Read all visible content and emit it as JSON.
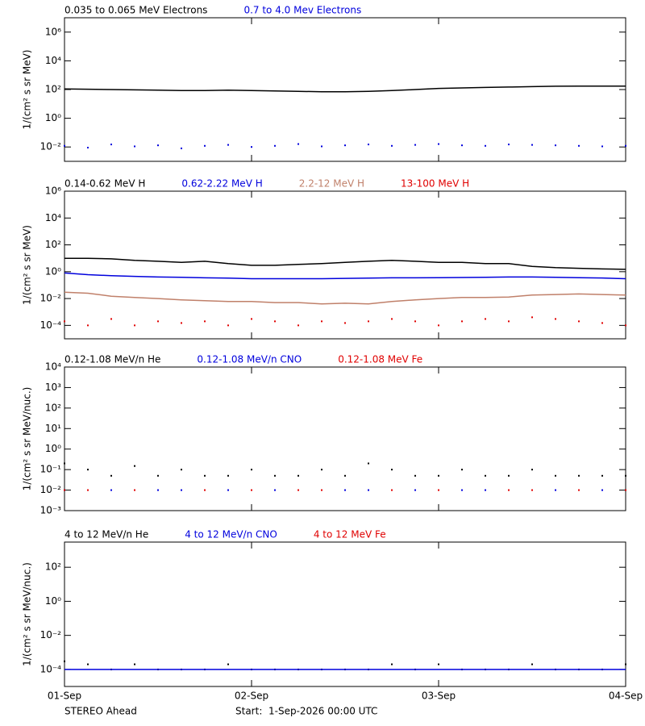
{
  "chart_data": [
    {
      "type": "line",
      "log_y": true,
      "ylabel": "1/(cm² s sr MeV)",
      "legend": "above-left",
      "xlim": [
        0,
        3
      ],
      "xticks": [
        {
          "value": 0,
          "label": "01-Sep"
        },
        {
          "value": 1,
          "label": "02-Sep"
        },
        {
          "value": 2,
          "label": "03-Sep"
        },
        {
          "value": 3,
          "label": "04-Sep"
        }
      ],
      "ylim": [
        0.001,
        10000000
      ],
      "yticks": [
        {
          "value": 0.01,
          "label": "10⁻²"
        },
        {
          "value": 1,
          "label": "10⁰"
        },
        {
          "value": 100,
          "label": "10²"
        },
        {
          "value": 10000,
          "label": "10⁴"
        },
        {
          "value": 1000000,
          "label": "10⁶"
        }
      ],
      "x": [
        0,
        0.125,
        0.25,
        0.375,
        0.5,
        0.625,
        0.75,
        0.875,
        1,
        1.125,
        1.25,
        1.375,
        1.5,
        1.625,
        1.75,
        1.875,
        2,
        2.125,
        2.25,
        2.375,
        2.5,
        2.625,
        2.75,
        2.875,
        3
      ],
      "series": [
        {
          "name": "0.035 to 0.065 MeV Electrons",
          "color": "#000000",
          "style": "line",
          "values": [
            110,
            105,
            100,
            95,
            90,
            85,
            85,
            90,
            85,
            80,
            75,
            70,
            70,
            75,
            85,
            100,
            120,
            130,
            140,
            150,
            160,
            170,
            175,
            175,
            175
          ]
        },
        {
          "name": "0.7 to 4.0 Mev Electrons",
          "color": "#0000dd",
          "style": "points",
          "values": [
            0.012,
            0.009,
            0.015,
            0.011,
            0.013,
            0.008,
            0.012,
            0.014,
            0.01,
            0.012,
            0.016,
            0.011,
            0.013,
            0.015,
            0.012,
            0.014,
            0.016,
            0.013,
            0.012,
            0.015,
            0.014,
            0.013,
            0.012,
            0.011,
            0.012
          ]
        }
      ]
    },
    {
      "type": "line",
      "log_y": true,
      "ylabel": "1/(cm² s sr MeV)",
      "legend": "above-left",
      "xlim": [
        0,
        3
      ],
      "xticks": [
        {
          "value": 0,
          "label": "01-Sep"
        },
        {
          "value": 1,
          "label": "02-Sep"
        },
        {
          "value": 2,
          "label": "03-Sep"
        },
        {
          "value": 3,
          "label": "04-Sep"
        }
      ],
      "ylim": [
        1e-05,
        1000000
      ],
      "yticks": [
        {
          "value": 0.0001,
          "label": "10⁻⁴"
        },
        {
          "value": 0.01,
          "label": "10⁻²"
        },
        {
          "value": 1,
          "label": "10⁰"
        },
        {
          "value": 100,
          "label": "10²"
        },
        {
          "value": 10000,
          "label": "10⁴"
        },
        {
          "value": 1000000,
          "label": "10⁶"
        }
      ],
      "x": [
        0,
        0.125,
        0.25,
        0.375,
        0.5,
        0.625,
        0.75,
        0.875,
        1,
        1.125,
        1.25,
        1.375,
        1.5,
        1.625,
        1.75,
        1.875,
        2,
        2.125,
        2.25,
        2.375,
        2.5,
        2.625,
        2.75,
        2.875,
        3
      ],
      "series": [
        {
          "name": "0.14-0.62 MeV H",
          "color": "#000000",
          "style": "line",
          "values": [
            10,
            10,
            9,
            7,
            6,
            5,
            6,
            4,
            3,
            3,
            3.5,
            4,
            5,
            6,
            7,
            6,
            5,
            5,
            4,
            4,
            2.5,
            2,
            1.8,
            1.6,
            1.5
          ]
        },
        {
          "name": "0.62-2.22 MeV H",
          "color": "#0000dd",
          "style": "line",
          "values": [
            0.8,
            0.6,
            0.5,
            0.45,
            0.4,
            0.38,
            0.35,
            0.33,
            0.3,
            0.3,
            0.3,
            0.3,
            0.32,
            0.33,
            0.35,
            0.35,
            0.36,
            0.37,
            0.38,
            0.4,
            0.4,
            0.38,
            0.36,
            0.34,
            0.3
          ]
        },
        {
          "name": "2.2-12 MeV H",
          "color": "#c0806a",
          "style": "line",
          "values": [
            0.03,
            0.025,
            0.015,
            0.012,
            0.01,
            0.008,
            0.007,
            0.006,
            0.006,
            0.005,
            0.005,
            0.004,
            0.0045,
            0.004,
            0.006,
            0.008,
            0.01,
            0.012,
            0.012,
            0.013,
            0.018,
            0.02,
            0.022,
            0.02,
            0.018
          ]
        },
        {
          "name": "13-100 MeV H",
          "color": "#e00000",
          "style": "points",
          "values": [
            0.0002,
            0.0001,
            0.0003,
            0.0001,
            0.0002,
            0.00015,
            0.0002,
            0.0001,
            0.0003,
            0.0002,
            0.0001,
            0.0002,
            0.00015,
            0.0002,
            0.0003,
            0.0002,
            0.0001,
            0.0002,
            0.0003,
            0.0002,
            0.0004,
            0.0003,
            0.0002,
            0.00015,
            0.0001
          ]
        }
      ]
    },
    {
      "type": "line",
      "log_y": true,
      "ylabel": "1/(cm² s sr MeV/nuc.)",
      "legend": "above-left",
      "xlim": [
        0,
        3
      ],
      "xticks": [
        {
          "value": 0,
          "label": "01-Sep"
        },
        {
          "value": 1,
          "label": "02-Sep"
        },
        {
          "value": 2,
          "label": "03-Sep"
        },
        {
          "value": 3,
          "label": "04-Sep"
        }
      ],
      "ylim": [
        0.001,
        10000
      ],
      "yticks": [
        {
          "value": 0.001,
          "label": "10⁻³"
        },
        {
          "value": 0.01,
          "label": "10⁻²"
        },
        {
          "value": 0.1,
          "label": "10⁻¹"
        },
        {
          "value": 1,
          "label": "10⁰"
        },
        {
          "value": 10,
          "label": "10¹"
        },
        {
          "value": 100,
          "label": "10²"
        },
        {
          "value": 1000,
          "label": "10³"
        },
        {
          "value": 10000,
          "label": "10⁴"
        }
      ],
      "x": [
        0,
        0.125,
        0.25,
        0.375,
        0.5,
        0.625,
        0.75,
        0.875,
        1,
        1.125,
        1.25,
        1.375,
        1.5,
        1.625,
        1.75,
        1.875,
        2,
        2.125,
        2.25,
        2.375,
        2.5,
        2.625,
        2.75,
        2.875,
        3
      ],
      "series": [
        {
          "name": "0.12-1.08 MeV/n He",
          "color": "#000000",
          "style": "points",
          "values": [
            0.2,
            0.1,
            0.05,
            0.15,
            0.05,
            0.1,
            0.05,
            0.05,
            0.1,
            0.05,
            0.05,
            0.1,
            0.05,
            0.2,
            0.1,
            0.05,
            0.05,
            0.1,
            0.05,
            0.05,
            0.1,
            0.05,
            0.05,
            0.05,
            0.05
          ]
        },
        {
          "name": "0.12-1.08 MeV/n CNO",
          "color": "#0000dd",
          "style": "points",
          "values": [
            0.01,
            null,
            0.01,
            null,
            0.01,
            0.01,
            null,
            0.01,
            null,
            0.01,
            null,
            null,
            0.01,
            0.01,
            null,
            0.01,
            null,
            0.01,
            0.01,
            null,
            null,
            0.01,
            null,
            0.01,
            null
          ]
        },
        {
          "name": "0.12-1.08 MeV Fe",
          "color": "#e00000",
          "style": "points",
          "values": [
            0.01,
            0.01,
            null,
            0.01,
            null,
            null,
            0.01,
            null,
            0.01,
            null,
            0.01,
            0.01,
            null,
            null,
            0.01,
            null,
            0.01,
            null,
            null,
            0.01,
            0.01,
            null,
            0.01,
            null,
            0.01
          ]
        }
      ]
    },
    {
      "type": "line",
      "log_y": true,
      "ylabel": "1/(cm² s sr MeV/nuc.)",
      "legend": "above-left",
      "xlim": [
        0,
        3
      ],
      "xticks": [
        {
          "value": 0,
          "label": "01-Sep"
        },
        {
          "value": 1,
          "label": "02-Sep"
        },
        {
          "value": 2,
          "label": "03-Sep"
        },
        {
          "value": 3,
          "label": "04-Sep"
        }
      ],
      "ylim": [
        1e-05,
        3000
      ],
      "yticks": [
        {
          "value": 0.0001,
          "label": "10⁻⁴"
        },
        {
          "value": 0.01,
          "label": "10⁻²"
        },
        {
          "value": 1,
          "label": "10⁰"
        },
        {
          "value": 100,
          "label": "10²"
        }
      ],
      "x": [
        0,
        0.125,
        0.25,
        0.375,
        0.5,
        0.625,
        0.75,
        0.875,
        1,
        1.125,
        1.25,
        1.375,
        1.5,
        1.625,
        1.75,
        1.875,
        2,
        2.125,
        2.25,
        2.375,
        2.5,
        2.625,
        2.75,
        2.875,
        3
      ],
      "series": [
        {
          "name": "4 to 12 MeV/n He",
          "color": "#000000",
          "style": "points",
          "values": [
            0.0003,
            0.0002,
            0.0001,
            0.0002,
            0.0001,
            0.0001,
            0.0001,
            0.0002,
            0.0001,
            0.0001,
            0.0001,
            0.0001,
            0.0001,
            0.0001,
            0.0002,
            0.0001,
            0.0002,
            0.0001,
            0.0001,
            0.0001,
            0.0002,
            0.0001,
            0.0001,
            0.0001,
            0.0002
          ]
        },
        {
          "name": "4 to 12 MeV/n CNO",
          "color": "#0000dd",
          "style": "line",
          "values": [
            0.0001,
            0.0001,
            0.0001,
            0.0001,
            0.0001,
            0.0001,
            0.0001,
            0.0001,
            0.0001,
            0.0001,
            0.0001,
            0.0001,
            0.0001,
            0.0001,
            0.0001,
            0.0001,
            0.0001,
            0.0001,
            0.0001,
            0.0001,
            0.0001,
            0.0001,
            0.0001,
            0.0001,
            0.0001
          ]
        },
        {
          "name": "4 to 12 MeV Fe",
          "color": "#e00000",
          "style": "points",
          "values": [
            null,
            null,
            null,
            null,
            null,
            null,
            null,
            null,
            null,
            null,
            null,
            null,
            null,
            null,
            null,
            null,
            null,
            null,
            null,
            null,
            null,
            null,
            null,
            null,
            null
          ]
        }
      ]
    }
  ],
  "footer": {
    "left": "STEREO Ahead",
    "right": "Start:  1-Sep-2026 00:00 UTC"
  }
}
